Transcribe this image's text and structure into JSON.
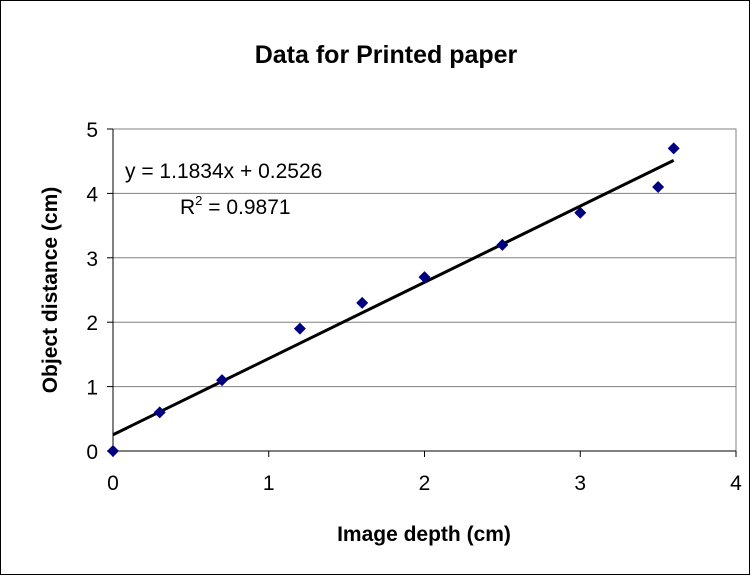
{
  "chart_data": {
    "type": "scatter",
    "title": "Data for Printed paper",
    "xlabel": "Image depth (cm)",
    "ylabel": "Object distance (cm)",
    "xlim": [
      0,
      4
    ],
    "ylim": [
      0,
      5
    ],
    "x_ticks": [
      0,
      1,
      2,
      3,
      4
    ],
    "y_ticks": [
      0,
      1,
      2,
      3,
      4,
      5
    ],
    "grid": "horizontal",
    "legend": "none",
    "series": [
      {
        "marker_color": "#000080",
        "points": [
          {
            "x": 0.0,
            "y": 0.0
          },
          {
            "x": 0.3,
            "y": 0.6
          },
          {
            "x": 0.7,
            "y": 1.1
          },
          {
            "x": 1.2,
            "y": 1.9
          },
          {
            "x": 1.6,
            "y": 2.3
          },
          {
            "x": 2.0,
            "y": 2.7
          },
          {
            "x": 2.5,
            "y": 3.2
          },
          {
            "x": 3.0,
            "y": 3.7
          },
          {
            "x": 3.5,
            "y": 4.1
          },
          {
            "x": 3.6,
            "y": 4.7
          }
        ]
      }
    ],
    "trendline": {
      "slope": 1.1834,
      "intercept": 0.2526,
      "x_range": [
        0,
        3.6
      ],
      "equation_label": "y = 1.1834x + 0.2526",
      "r2_prefix": "R",
      "r2_superscript": "2",
      "r2_value_text": " = 0.9871"
    }
  }
}
